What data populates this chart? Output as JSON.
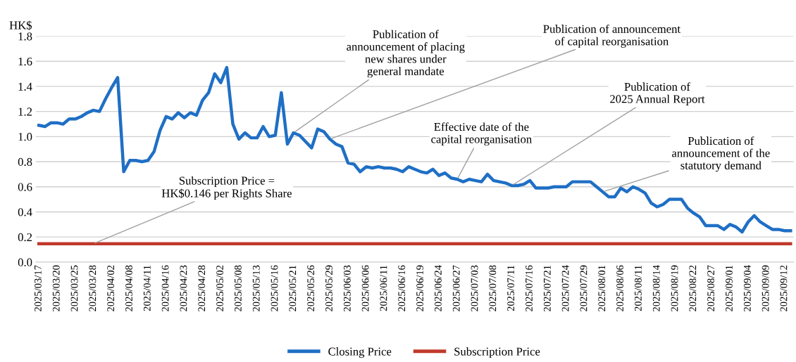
{
  "chart_data": {
    "type": "line",
    "ylabel": "HK$",
    "categories": [
      "2025/03/17",
      null,
      null,
      "2025/03/20",
      null,
      null,
      "2025/03/25",
      null,
      null,
      "2025/03/28",
      null,
      null,
      "2025/04/02",
      null,
      null,
      "2025/04/08",
      null,
      null,
      "2025/04/11",
      null,
      null,
      "2025/04/16",
      null,
      null,
      "2025/04/23",
      null,
      null,
      "2025/04/28",
      null,
      null,
      "2025/05/02",
      null,
      null,
      "2025/05/08",
      null,
      null,
      "2025/05/13",
      null,
      null,
      "2025/05/16",
      null,
      null,
      "2025/05/21",
      null,
      null,
      "2025/05/26",
      null,
      null,
      "2025/05/29",
      null,
      null,
      "2025/06/03",
      null,
      null,
      "2025/06/06",
      null,
      null,
      "2025/06/11",
      null,
      null,
      "2025/06/16",
      null,
      null,
      "2025/06/19",
      null,
      null,
      "2025/06/24",
      null,
      null,
      "2025/06/27",
      null,
      null,
      "2025/07/03",
      null,
      null,
      "2025/07/08",
      null,
      null,
      "2025/07/11",
      null,
      null,
      "2025/07/16",
      null,
      null,
      "2025/07/21",
      null,
      null,
      "2025/07/24",
      null,
      null,
      "2025/07/29",
      null,
      null,
      "2025/08/01",
      null,
      null,
      "2025/08/06",
      null,
      null,
      "2025/08/11",
      null,
      null,
      "2025/08/14",
      null,
      null,
      "2025/08/19",
      null,
      null,
      "2025/08/22",
      null,
      null,
      "2025/08/27",
      null,
      null,
      "2025/09/01",
      null,
      null,
      "2025/09/04",
      null,
      null,
      "2025/09/09",
      null,
      null,
      "2025/09/12",
      null
    ],
    "series": [
      {
        "name": "Closing Price",
        "color": "#1f6fc5",
        "values": [
          1.09,
          1.08,
          1.11,
          1.11,
          1.1,
          1.14,
          1.14,
          1.16,
          1.19,
          1.21,
          1.2,
          1.3,
          1.39,
          1.47,
          0.72,
          0.81,
          0.81,
          0.8,
          0.81,
          0.88,
          1.05,
          1.16,
          1.14,
          1.19,
          1.15,
          1.19,
          1.17,
          1.29,
          1.35,
          1.5,
          1.43,
          1.55,
          1.1,
          0.98,
          1.03,
          0.99,
          0.99,
          1.08,
          1.0,
          1.01,
          1.35,
          0.94,
          1.03,
          1.01,
          0.96,
          0.91,
          1.06,
          1.04,
          0.98,
          0.94,
          0.92,
          0.79,
          0.78,
          0.72,
          0.76,
          0.75,
          0.76,
          0.75,
          0.75,
          0.74,
          0.72,
          0.76,
          0.74,
          0.72,
          0.71,
          0.74,
          0.69,
          0.71,
          0.67,
          0.66,
          0.64,
          0.66,
          0.65,
          0.64,
          0.7,
          0.65,
          0.64,
          0.63,
          0.61,
          0.61,
          0.62,
          0.65,
          0.59,
          0.59,
          0.59,
          0.6,
          0.6,
          0.6,
          0.64,
          0.64,
          0.64,
          0.64,
          0.6,
          0.56,
          0.52,
          0.52,
          0.59,
          0.56,
          0.6,
          0.58,
          0.55,
          0.47,
          0.44,
          0.46,
          0.5,
          0.5,
          0.5,
          0.43,
          0.39,
          0.36,
          0.29,
          0.29,
          0.29,
          0.26,
          0.3,
          0.28,
          0.24,
          0.32,
          0.37,
          0.32,
          0.29,
          0.26,
          0.26,
          0.25,
          0.25
        ]
      },
      {
        "name": "Subscription Price",
        "color": "#c0392b",
        "values": [
          0.146,
          0.146,
          0.146,
          0.146,
          0.146,
          0.146,
          0.146,
          0.146,
          0.146,
          0.146,
          0.146,
          0.146,
          0.146,
          0.146,
          0.146,
          0.146,
          0.146,
          0.146,
          0.146,
          0.146,
          0.146,
          0.146,
          0.146,
          0.146,
          0.146,
          0.146,
          0.146,
          0.146,
          0.146,
          0.146,
          0.146,
          0.146,
          0.146,
          0.146,
          0.146,
          0.146,
          0.146,
          0.146,
          0.146,
          0.146,
          0.146,
          0.146,
          0.146,
          0.146,
          0.146,
          0.146,
          0.146,
          0.146,
          0.146,
          0.146,
          0.146,
          0.146,
          0.146,
          0.146,
          0.146,
          0.146,
          0.146,
          0.146,
          0.146,
          0.146,
          0.146,
          0.146,
          0.146,
          0.146,
          0.146,
          0.146,
          0.146,
          0.146,
          0.146,
          0.146,
          0.146,
          0.146,
          0.146,
          0.146,
          0.146,
          0.146,
          0.146,
          0.146,
          0.146,
          0.146,
          0.146,
          0.146,
          0.146,
          0.146,
          0.146,
          0.146,
          0.146,
          0.146,
          0.146,
          0.146,
          0.146,
          0.146,
          0.146,
          0.146,
          0.146,
          0.146,
          0.146,
          0.146,
          0.146,
          0.146,
          0.146,
          0.146,
          0.146,
          0.146,
          0.146,
          0.146,
          0.146,
          0.146,
          0.146,
          0.146,
          0.146,
          0.146,
          0.146,
          0.146,
          0.146,
          0.146,
          0.146,
          0.146,
          0.146,
          0.146,
          0.146,
          0.146,
          0.146,
          0.146,
          0.146
        ]
      }
    ],
    "ylim": [
      0,
      1.8
    ],
    "yticks": [
      {
        "value": 0,
        "label": "0.0"
      },
      {
        "value": 0.2,
        "label": "0.2"
      },
      {
        "value": 0.4,
        "label": "0.4"
      },
      {
        "value": 0.6,
        "label": "0.6"
      },
      {
        "value": 0.8,
        "label": "0.8"
      },
      {
        "value": 1.0,
        "label": "1.0"
      },
      {
        "value": 1.2,
        "label": "1.2"
      },
      {
        "value": 1.4,
        "label": "1.4"
      },
      {
        "value": 1.6,
        "label": "1.6"
      },
      {
        "value": 1.8,
        "label": "1.8"
      }
    ],
    "grid": "y",
    "legend": "bottom",
    "marker": "none",
    "line_style": "solid",
    "annotations": [
      {
        "text": "Publication of\nannouncement of placing\nnew shares under\ngeneral mandate",
        "x": "2025/05/21",
        "y": 1.03
      },
      {
        "text": "Publication of announcement\nof capital reorganisation",
        "x": "2025/05/29",
        "y": 0.98
      },
      {
        "text": "Effective date of the\ncapital reorganisation",
        "x": "2025/06/27",
        "y": 0.66
      },
      {
        "text": "Publication of\n2025 Annual Report",
        "x": "2025/07/11",
        "y": 0.61
      },
      {
        "text": "Publication of\nannouncement of the\nstatutory demand",
        "x": "2025/08/01",
        "y": 0.56
      },
      {
        "text": "Subscription Price =\nHK$0.146 per Rights Share",
        "x": "2025/03/28",
        "y": 0.146
      }
    ]
  }
}
